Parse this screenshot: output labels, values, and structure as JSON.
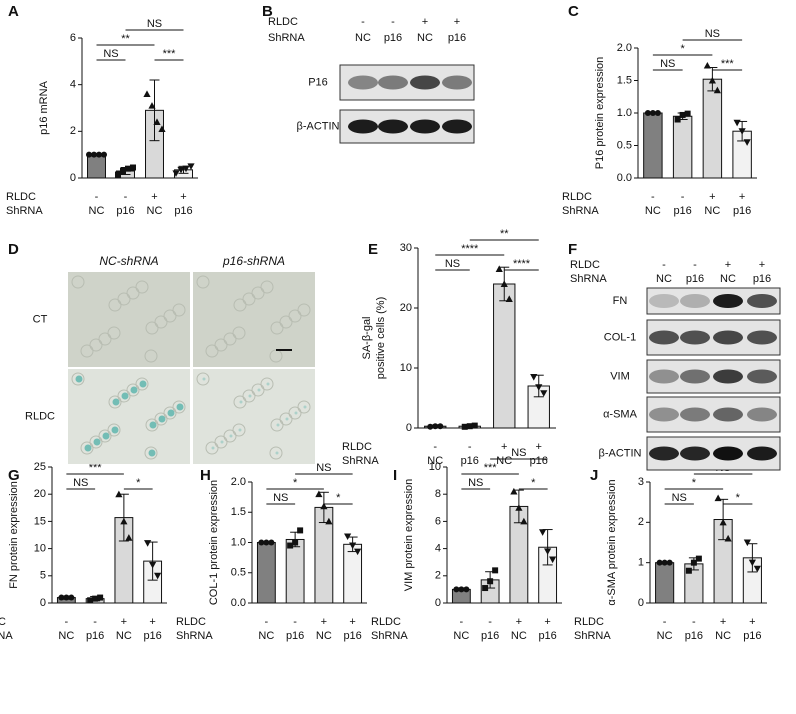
{
  "chart_data": [
    {
      "type": "bar",
      "panel": "A",
      "ylabel": "p16 mRNA",
      "ylim": [
        0,
        6
      ],
      "yticks": [
        0,
        2,
        4,
        6
      ],
      "colors": [
        "#808080",
        "#d9d9d9",
        "#d9d9d9",
        "#f2f2f2"
      ],
      "values": [
        1.0,
        0.3,
        2.9,
        0.35
      ],
      "errors": [
        0.02,
        0.15,
        1.3,
        0.15
      ],
      "points": [
        [
          1.0,
          1.0,
          1.0,
          1.0
        ],
        [
          0.15,
          0.3,
          0.4,
          0.45
        ],
        [
          3.6,
          3.1,
          2.4,
          2.1
        ],
        [
          0.2,
          0.35,
          0.4,
          0.5
        ]
      ],
      "conditions": [
        {
          "label": "RLDC",
          "values": [
            "-",
            "-",
            "+",
            "+"
          ]
        },
        {
          "label": "ShRNA",
          "values": [
            "NC",
            "p16",
            "NC",
            "p16"
          ]
        }
      ],
      "comparisons": [
        {
          "pair": [
            0,
            1
          ],
          "label": "NS"
        },
        {
          "pair": [
            2,
            3
          ],
          "label": "***"
        },
        {
          "pair": [
            0,
            2
          ],
          "label": "**"
        },
        {
          "pair": [
            1,
            3
          ],
          "label": "NS"
        }
      ]
    },
    {
      "type": "bar",
      "panel": "C",
      "ylabel": "P16 protein expression",
      "ylim": [
        0,
        2.0
      ],
      "yticks": [
        {
          "value": 0,
          "label": "0.0"
        },
        {
          "value": 0.5,
          "label": "0.5"
        },
        {
          "value": 1,
          "label": "1.0"
        },
        {
          "value": 1.5,
          "label": "1.5"
        },
        {
          "value": 2,
          "label": "2.0"
        }
      ],
      "colors": [
        "#808080",
        "#d9d9d9",
        "#d9d9d9",
        "#f2f2f2"
      ],
      "values": [
        1.0,
        0.95,
        1.52,
        0.72
      ],
      "errors": [
        0.01,
        0.05,
        0.18,
        0.15
      ],
      "points": [
        [
          1.0,
          1.0,
          1.0
        ],
        [
          0.9,
          0.97,
          0.99
        ],
        [
          1.73,
          1.5,
          1.35
        ],
        [
          0.85,
          0.72,
          0.55
        ]
      ],
      "conditions": [
        {
          "label": "RLDC",
          "values": [
            "-",
            "-",
            "+",
            "+"
          ]
        },
        {
          "label": "ShRNA",
          "values": [
            "NC",
            "p16",
            "NC",
            "p16"
          ]
        }
      ],
      "comparisons": [
        {
          "pair": [
            0,
            1
          ],
          "label": "NS"
        },
        {
          "pair": [
            2,
            3
          ],
          "label": "***"
        },
        {
          "pair": [
            0,
            2
          ],
          "label": "*"
        },
        {
          "pair": [
            1,
            3
          ],
          "label": "NS"
        }
      ]
    },
    {
      "type": "bar",
      "panel": "E",
      "ylabel": [
        "SA-β-gal",
        "positive cells (%)"
      ],
      "ylim": [
        0,
        30
      ],
      "yticks": [
        0,
        10,
        20,
        30
      ],
      "colors": [
        "#808080",
        "#d9d9d9",
        "#d9d9d9",
        "#f2f2f2"
      ],
      "values": [
        0.3,
        0.3,
        24,
        7
      ],
      "errors": [
        0.2,
        0.2,
        2.8,
        1.8
      ],
      "points": [
        [
          0.2,
          0.3,
          0.3
        ],
        [
          0.2,
          0.3,
          0.4
        ],
        [
          26.5,
          24,
          21.5
        ],
        [
          8.5,
          6.8,
          5.8
        ]
      ],
      "conditions": [
        {
          "label": "RLDC",
          "values": [
            "-",
            "-",
            "+",
            "+"
          ]
        },
        {
          "label": "ShRNA",
          "values": [
            "NC",
            "p16",
            "NC",
            "p16"
          ]
        }
      ],
      "comparisons": [
        {
          "pair": [
            0,
            1
          ],
          "label": "NS"
        },
        {
          "pair": [
            2,
            3
          ],
          "label": "****"
        },
        {
          "pair": [
            0,
            2
          ],
          "label": "****"
        },
        {
          "pair": [
            1,
            3
          ],
          "label": "**"
        }
      ]
    },
    {
      "type": "bar",
      "panel": "G",
      "ylabel": "FN protein expression",
      "ylim": [
        0,
        25
      ],
      "yticks": [
        0,
        5,
        10,
        15,
        20,
        25
      ],
      "colors": [
        "#808080",
        "#d9d9d9",
        "#d9d9d9",
        "#f2f2f2"
      ],
      "values": [
        1.0,
        0.8,
        15.7,
        7.7
      ],
      "errors": [
        0.3,
        0.4,
        4.3,
        3.5
      ],
      "points": [
        [
          1.0,
          1.0,
          1.0
        ],
        [
          0.5,
          0.8,
          1.0
        ],
        [
          20,
          15,
          12
        ],
        [
          11,
          7,
          5
        ]
      ],
      "conditions": [
        {
          "label": "RLDC",
          "values": [
            "-",
            "-",
            "+",
            "+"
          ]
        },
        {
          "label": "ShRNA",
          "values": [
            "NC",
            "p16",
            "NC",
            "p16"
          ]
        }
      ],
      "comparisons": [
        {
          "pair": [
            0,
            1
          ],
          "label": "NS"
        },
        {
          "pair": [
            2,
            3
          ],
          "label": "*"
        },
        {
          "pair": [
            0,
            2
          ],
          "label": "***"
        },
        {
          "pair": [
            1,
            3
          ],
          "label": "*"
        }
      ]
    },
    {
      "type": "bar",
      "panel": "H",
      "ylabel": "COL-1 protein expression",
      "ylim": [
        0,
        2.0
      ],
      "yticks": [
        {
          "value": 0,
          "label": "0.0"
        },
        {
          "value": 0.5,
          "label": "0.5"
        },
        {
          "value": 1,
          "label": "1.0"
        },
        {
          "value": 1.5,
          "label": "1.5"
        },
        {
          "value": 2,
          "label": "2.0"
        }
      ],
      "colors": [
        "#808080",
        "#d9d9d9",
        "#d9d9d9",
        "#f2f2f2"
      ],
      "values": [
        1.0,
        1.05,
        1.58,
        0.97
      ],
      "errors": [
        0.01,
        0.12,
        0.25,
        0.12
      ],
      "points": [
        [
          1.0,
          1.0,
          1.0
        ],
        [
          0.95,
          1.0,
          1.2
        ],
        [
          1.8,
          1.6,
          1.35
        ],
        [
          1.1,
          0.95,
          0.85
        ]
      ],
      "conditions": [
        {
          "label": "RLDC",
          "values": [
            "-",
            "-",
            "+",
            "+"
          ]
        },
        {
          "label": "ShRNA",
          "values": [
            "NC",
            "p16",
            "NC",
            "p16"
          ]
        }
      ],
      "comparisons": [
        {
          "pair": [
            0,
            1
          ],
          "label": "NS"
        },
        {
          "pair": [
            2,
            3
          ],
          "label": "*"
        },
        {
          "pair": [
            0,
            2
          ],
          "label": "*"
        },
        {
          "pair": [
            1,
            3
          ],
          "label": "NS"
        }
      ]
    },
    {
      "type": "bar",
      "panel": "I",
      "ylabel": "VIM protein expression",
      "ylim": [
        0,
        10
      ],
      "yticks": [
        0,
        2,
        4,
        6,
        8,
        10
      ],
      "colors": [
        "#808080",
        "#d9d9d9",
        "#d9d9d9",
        "#f2f2f2"
      ],
      "values": [
        1.0,
        1.7,
        7.1,
        4.1
      ],
      "errors": [
        0.1,
        0.6,
        1.2,
        1.3
      ],
      "points": [
        [
          1.0,
          1.0,
          1.0
        ],
        [
          1.1,
          1.6,
          2.4
        ],
        [
          8.2,
          7.0,
          6.0
        ],
        [
          5.2,
          3.8,
          3.2
        ]
      ],
      "conditions": [
        {
          "label": "RLDC",
          "values": [
            "-",
            "-",
            "+",
            "+"
          ]
        },
        {
          "label": "ShRNA",
          "values": [
            "NC",
            "p16",
            "NC",
            "p16"
          ]
        }
      ],
      "comparisons": [
        {
          "pair": [
            0,
            1
          ],
          "label": "NS"
        },
        {
          "pair": [
            2,
            3
          ],
          "label": "*"
        },
        {
          "pair": [
            0,
            2
          ],
          "label": "***"
        },
        {
          "pair": [
            1,
            3
          ],
          "label": "NS"
        }
      ]
    },
    {
      "type": "bar",
      "panel": "J",
      "ylabel": "α-SMA protein expression",
      "ylim": [
        0,
        3
      ],
      "yticks": [
        0,
        1,
        2,
        3
      ],
      "colors": [
        "#808080",
        "#d9d9d9",
        "#d9d9d9",
        "#f2f2f2"
      ],
      "values": [
        1.0,
        0.97,
        2.07,
        1.12
      ],
      "errors": [
        0.01,
        0.15,
        0.5,
        0.35
      ],
      "points": [
        [
          1.0,
          1.0,
          1.0
        ],
        [
          0.8,
          1.0,
          1.1
        ],
        [
          2.6,
          2.0,
          1.6
        ],
        [
          1.5,
          1.0,
          0.85
        ]
      ],
      "conditions": [
        {
          "label": "RLDC",
          "values": [
            "-",
            "-",
            "+",
            "+"
          ]
        },
        {
          "label": "ShRNA",
          "values": [
            "NC",
            "p16",
            "NC",
            "p16"
          ]
        }
      ],
      "comparisons": [
        {
          "pair": [
            0,
            1
          ],
          "label": "NS"
        },
        {
          "pair": [
            2,
            3
          ],
          "label": "*"
        },
        {
          "pair": [
            0,
            2
          ],
          "label": "*"
        },
        {
          "pair": [
            1,
            3
          ],
          "label": "NS"
        }
      ]
    }
  ],
  "blots": [
    {
      "panel": "B",
      "conditions": [
        {
          "label": "RLDC",
          "values": [
            "-",
            "-",
            "+",
            "+"
          ]
        },
        {
          "label": "ShRNA",
          "values": [
            "NC",
            "p16",
            "NC",
            "p16"
          ]
        }
      ],
      "bands": [
        "P16",
        "β-ACTIN"
      ]
    },
    {
      "panel": "F",
      "conditions": [
        {
          "label": "RLDC",
          "values": [
            "-",
            "-",
            "+",
            "+"
          ]
        },
        {
          "label": "ShRNA",
          "values": [
            "NC",
            "p16",
            "NC",
            "p16"
          ]
        }
      ],
      "bands": [
        "FN",
        "COL-1",
        "VIM",
        "α-SMA",
        "β-ACTIN"
      ]
    }
  ],
  "staining": {
    "panel": "D",
    "columns": [
      "NC-shRNA",
      "p16-shRNA"
    ],
    "rows": [
      "CT",
      "RLDC"
    ]
  }
}
